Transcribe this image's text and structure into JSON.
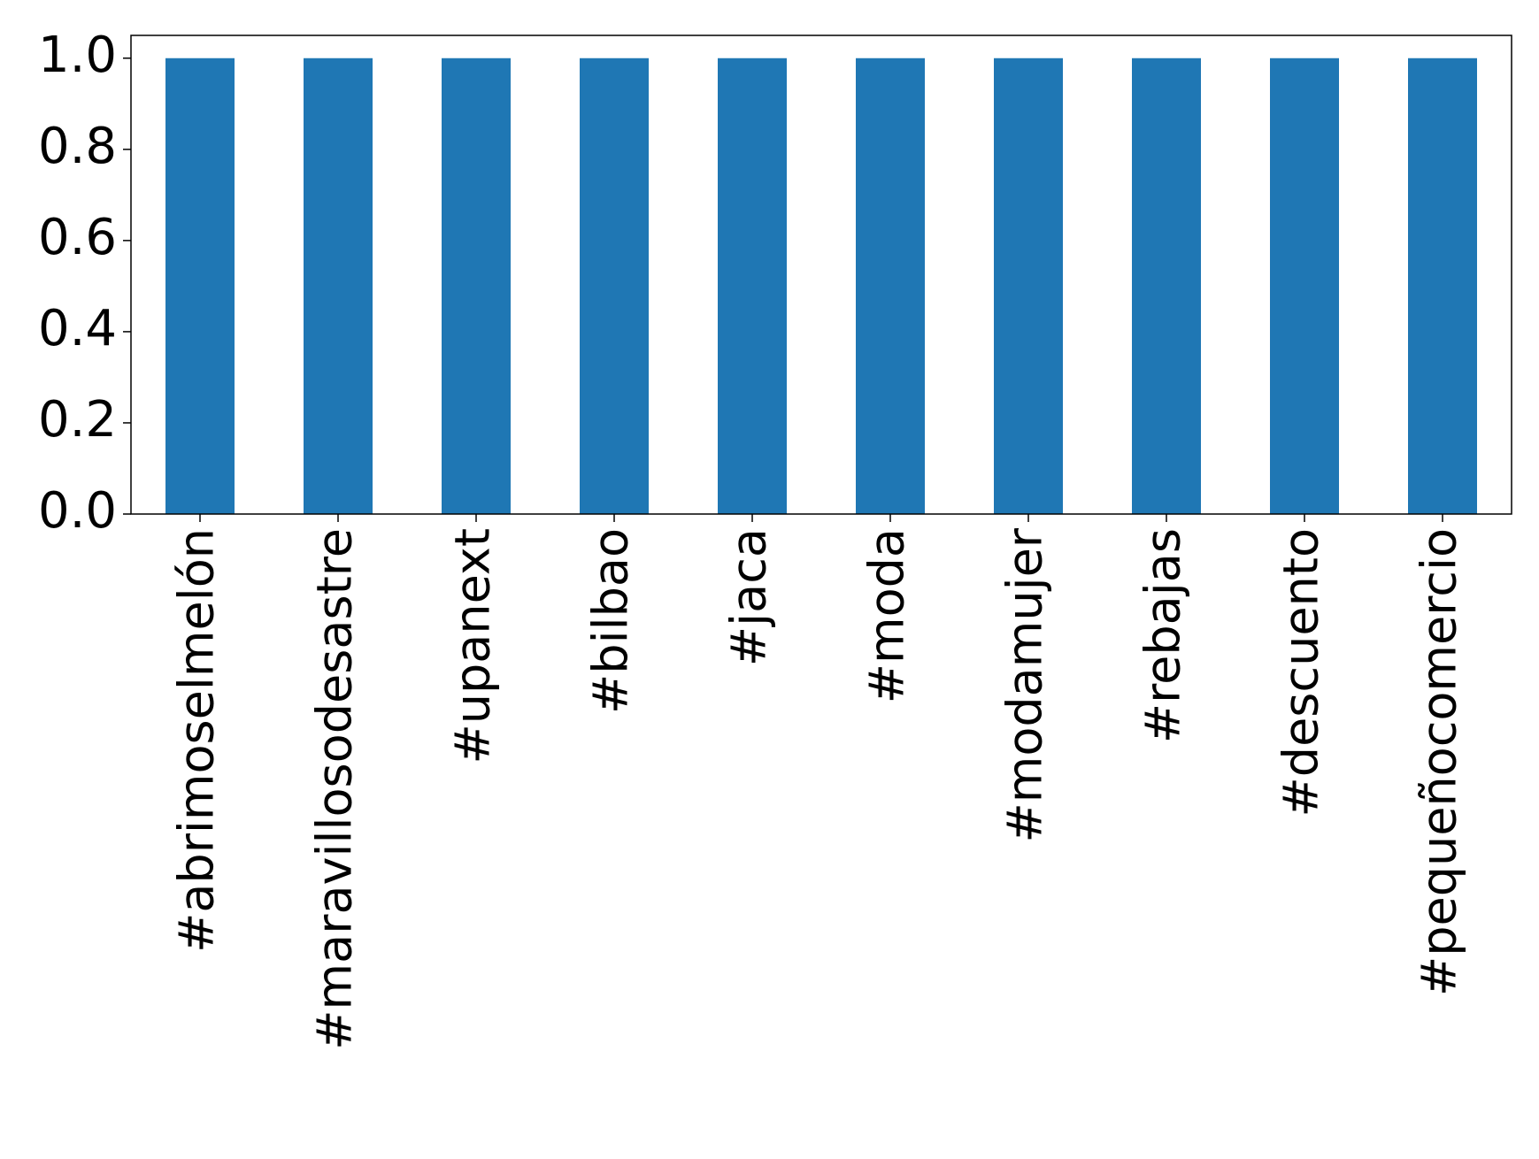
{
  "chart_data": {
    "type": "bar",
    "categories": [
      "#abrimoselmelón",
      "#maravillosodesastre",
      "#upanext",
      "#bilbao",
      "#jaca",
      "#moda",
      "#modamujer",
      "#rebajas",
      "#descuento",
      "#pequeñocomercio"
    ],
    "values": [
      1,
      1,
      1,
      1,
      1,
      1,
      1,
      1,
      1,
      1
    ],
    "color": "#1f77b4",
    "ylim": [
      0,
      1.05
    ],
    "yticks": [
      {
        "value": 0,
        "label": "0.0"
      },
      {
        "value": 0.2,
        "label": "0.2"
      },
      {
        "value": 0.4,
        "label": "0.4"
      },
      {
        "value": 0.6,
        "label": "0.6"
      },
      {
        "value": 0.8,
        "label": "0.8"
      },
      {
        "value": 1,
        "label": "1.0"
      }
    ],
    "grid": false
  }
}
